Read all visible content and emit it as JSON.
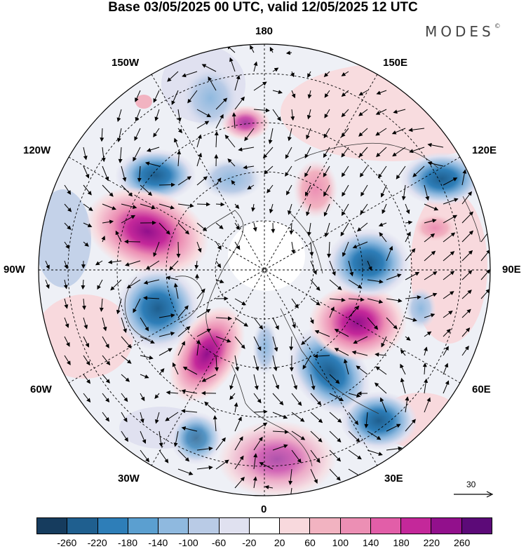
{
  "title": "Base 03/05/2025 00 UTC, valid 12/05/2025 12 UTC",
  "brand": "MODES",
  "brand_mark": "©",
  "longitude_labels": {
    "n180": "180",
    "w150": "150W",
    "e150": "150E",
    "w120": "120W",
    "e120": "120E",
    "w90": "90W",
    "e90": "90E",
    "w60": "60W",
    "e60": "60E",
    "w30": "30W",
    "e30": "30E",
    "s0": "0"
  },
  "reference_vector_label": "30",
  "colorbar": {
    "colors": [
      "#163c5e",
      "#1f5f8f",
      "#2e7eb8",
      "#5b9fd0",
      "#8fb9df",
      "#b9cbe6",
      "#e0e1f0",
      "#ffffff",
      "#f8d9dd",
      "#f2b3c1",
      "#ec8fb4",
      "#e25ea8",
      "#c4289a",
      "#92108c",
      "#5c0a78"
    ],
    "ticks": [
      "-260",
      "-220",
      "-180",
      "-140",
      "-100",
      "-60",
      "-20",
      "20",
      "60",
      "100",
      "140",
      "180",
      "220",
      "260"
    ]
  },
  "anomaly_centers": [
    {
      "label": "neg-120W",
      "lon": -124,
      "lat": 38,
      "value": -200
    },
    {
      "label": "pos-105W",
      "lon": -104,
      "lat": 36,
      "value": 250
    },
    {
      "label": "neg-75W",
      "lon": -72,
      "lat": 42,
      "value": -220
    },
    {
      "label": "pos-45W",
      "lon": -45,
      "lat": 60,
      "value": 260
    },
    {
      "label": "neg-20W",
      "lon": -22,
      "lat": 36,
      "value": -160
    },
    {
      "label": "pos-15E",
      "lon": 12,
      "lat": 48,
      "value": 180
    },
    {
      "label": "neg-38E",
      "lon": 38,
      "lat": 42,
      "value": -200
    },
    {
      "label": "neg-45E",
      "lon": 42,
      "lat": 60,
      "value": -180
    },
    {
      "label": "pos-75E",
      "lon": 72,
      "lat": 62,
      "value": 270
    },
    {
      "label": "neg-88E",
      "lon": 92,
      "lat": 58,
      "value": -200
    },
    {
      "label": "neg-132E",
      "lon": 128,
      "lat": 34,
      "value": -180
    },
    {
      "label": "pos-170E",
      "lon": 170,
      "lat": 56,
      "value": 140
    },
    {
      "label": "neg-160W",
      "lon": -160,
      "lat": 46,
      "value": -120
    },
    {
      "label": "pos-175W",
      "lon": -172,
      "lat": 68,
      "value": 60
    }
  ]
}
